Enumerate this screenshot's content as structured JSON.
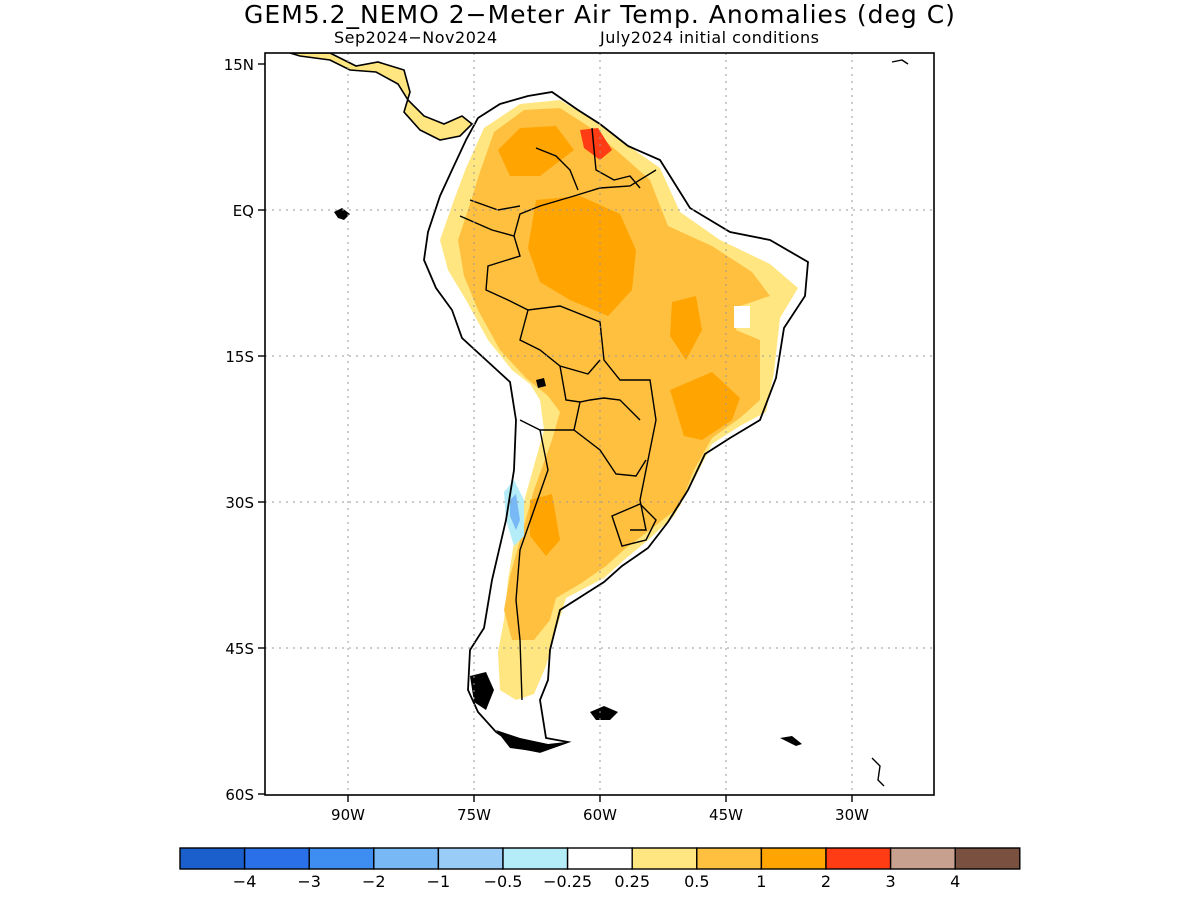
{
  "title": "GEM5.2_NEMO 2−Meter Air Temp. Anomalies (deg C)",
  "subtitle_left": "Sep2024−Nov2024",
  "subtitle_right": "July2024 initial conditions",
  "lat_labels": [
    "15N",
    "EQ",
    "15S",
    "30S",
    "45S",
    "60S"
  ],
  "lon_labels": [
    "90W",
    "75W",
    "60W",
    "45W",
    "30W"
  ],
  "colorbar": {
    "colors": [
      "#1a5fcc",
      "#2a70e8",
      "#3d8ef0",
      "#78b8f4",
      "#99cdf8",
      "#b4ecf8",
      "#ffffff",
      "#ffe680",
      "#ffc040",
      "#ffa400",
      "#ff3c14",
      "#c8a090",
      "#7a5040"
    ],
    "labels": [
      "−4",
      "−3",
      "−2",
      "−1",
      "−0.5",
      "−0.25",
      "0.25",
      "0.5",
      "1",
      "2",
      "3",
      "4"
    ]
  },
  "colors": {
    "anomaly_0_5_to_1": "#ffe680",
    "anomaly_1_to_2": "#ffc040",
    "anomaly_2_to_3": "#ffa400",
    "anomaly_3_to_4": "#ff3c14",
    "anomaly_neg_0_5": "#b4ecf8",
    "anomaly_neg_1": "#78b8f4"
  }
}
